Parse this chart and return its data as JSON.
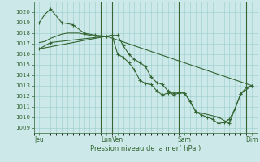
{
  "bg_color": "#cce8e8",
  "grid_color": "#99cccc",
  "line_color": "#336633",
  "xlabel": "Pression niveau de la mer( hPa )",
  "ylim": [
    1008.5,
    1021.0
  ],
  "yticks": [
    1009,
    1010,
    1011,
    1012,
    1013,
    1014,
    1015,
    1016,
    1017,
    1018,
    1019,
    1020
  ],
  "xlim": [
    0,
    20
  ],
  "xtick_labels": [
    "Jeu",
    "Lun",
    "Ven",
    "Sam",
    "Dim"
  ],
  "xtick_positions": [
    0.5,
    6.5,
    7.5,
    13.5,
    19.5
  ],
  "vlines_x": [
    6.0,
    7.0,
    13.0,
    19.0
  ],
  "line1_x": [
    0.5,
    1.0,
    1.5,
    2.5,
    3.5,
    4.5,
    5.5,
    6.5,
    7.0,
    7.5,
    8.0,
    8.5,
    9.0,
    9.5,
    10.0,
    10.5,
    11.0,
    11.5,
    12.0,
    12.5,
    13.0,
    13.5,
    14.5,
    16.5,
    17.5,
    18.5,
    19.5
  ],
  "line1_y": [
    1019.0,
    1019.8,
    1020.3,
    1019.0,
    1018.8,
    1018.0,
    1017.8,
    1017.7,
    1017.8,
    1016.0,
    1015.7,
    1015.2,
    1014.5,
    1013.5,
    1013.2,
    1013.1,
    1012.5,
    1012.1,
    1012.3,
    1012.3,
    1012.3,
    1012.3,
    1010.5,
    1010.0,
    1009.4,
    1012.2,
    1013.0
  ],
  "line2_x": [
    0.5,
    1.5,
    6.5,
    7.5,
    8.0,
    8.5,
    9.0,
    9.5,
    10.0,
    10.5,
    11.0,
    11.5,
    12.0,
    12.5,
    13.0,
    13.5,
    14.0,
    14.5,
    15.0,
    15.5,
    16.0,
    16.5,
    17.0,
    17.5,
    18.0,
    18.5,
    19.0,
    19.5
  ],
  "line2_y": [
    1016.5,
    1017.1,
    1017.7,
    1017.8,
    1016.8,
    1016.0,
    1015.5,
    1015.2,
    1014.8,
    1013.8,
    1013.3,
    1013.1,
    1012.5,
    1012.1,
    1012.3,
    1012.3,
    1011.5,
    1010.5,
    1010.2,
    1010.0,
    1009.8,
    1009.4,
    1009.5,
    1009.8,
    1010.8,
    1012.2,
    1012.8,
    1013.0
  ],
  "line3_x": [
    0.5,
    6.5,
    19.5
  ],
  "line3_y": [
    1016.5,
    1017.7,
    1013.0
  ],
  "line4_x": [
    0.5,
    1.0,
    1.5,
    2.0,
    2.5,
    3.0,
    3.5,
    4.0,
    4.5,
    5.0,
    5.5,
    6.0,
    6.5
  ],
  "line4_y": [
    1017.1,
    1017.2,
    1017.5,
    1017.7,
    1017.9,
    1018.0,
    1018.0,
    1018.0,
    1017.9,
    1017.8,
    1017.7,
    1017.7,
    1017.7
  ]
}
